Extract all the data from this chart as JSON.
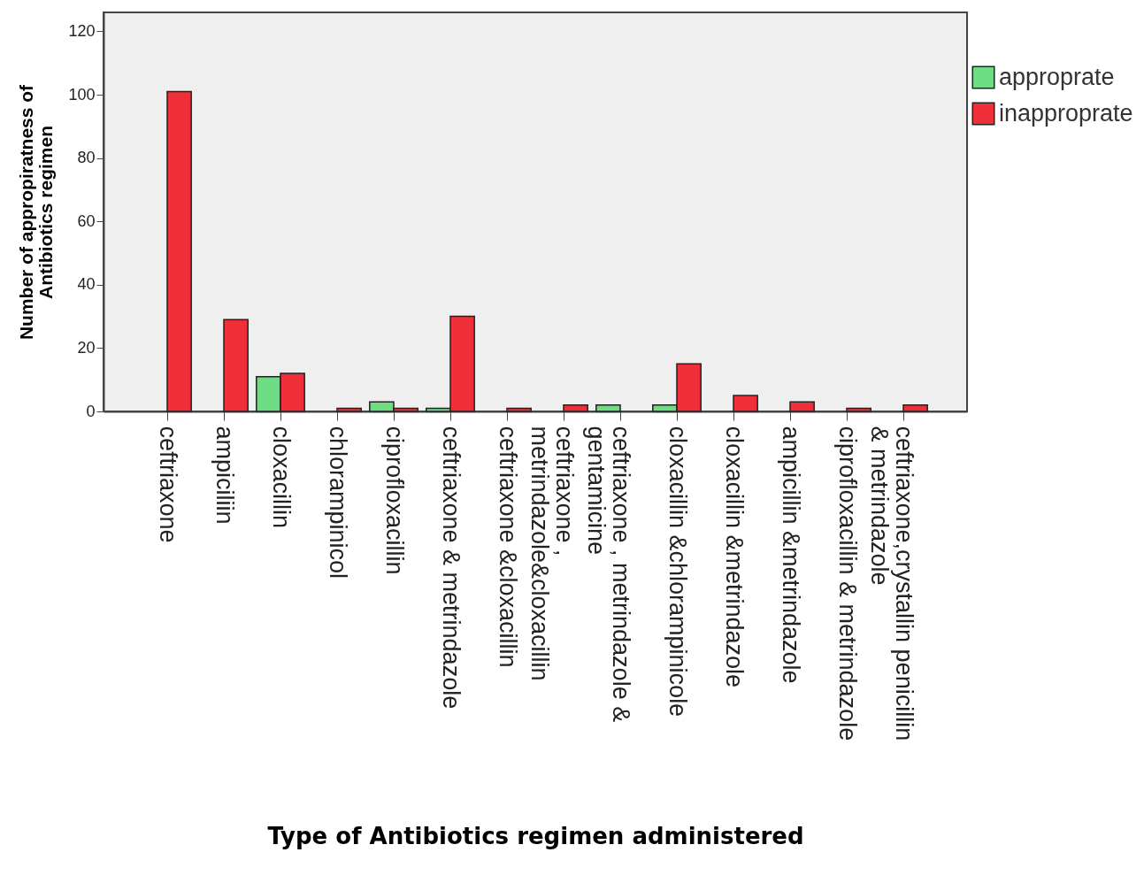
{
  "chart_data": {
    "type": "bar",
    "xlabel": "Type of Antibiotics regimen administered",
    "ylabel": "Number of appropiratness of Antibiotics regimen",
    "categories": [
      "ceftriaxone",
      "ampiciliin",
      "cloxacillin",
      "chlorampinicol",
      "ciprofloxacillin",
      "ceftriaxone & metrindazole",
      "ceftriaxone &cloxacillin",
      "ceftriaxone , metrindazole&cloxacillin",
      "ceftriaxone , metrindazole & gentamicine",
      "cloxacillin &chlorampinicole",
      "cloxacillin &metrindazole",
      "ampicillin &metrindazole",
      "ciprofloxacillin & metrindazole",
      "ceftriaxone,crystallin penicillin & metrindazole"
    ],
    "series": [
      {
        "name": "approprate",
        "color": "#6ddc82",
        "values": [
          null,
          null,
          11,
          null,
          3,
          1,
          null,
          null,
          2,
          2,
          null,
          null,
          null,
          null
        ]
      },
      {
        "name": "inapproprate",
        "color": "#ef3038",
        "values": [
          101,
          29,
          12,
          1,
          1,
          30,
          1,
          2,
          null,
          15,
          5,
          3,
          1,
          2
        ]
      }
    ],
    "ylim": [
      0,
      126
    ],
    "yticks": [
      0,
      20,
      40,
      60,
      80,
      100,
      120
    ],
    "grid": false,
    "legend": "top right"
  }
}
